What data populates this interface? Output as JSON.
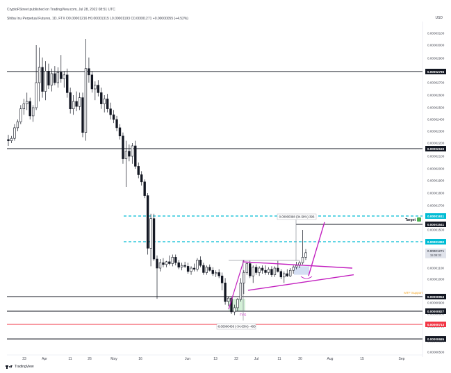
{
  "header": {
    "publisher_line": "CryptoFStreet published on TradingView.com, Jul 28, 2022 08:51 UTC",
    "symbol_line": "Shiba Inu Perpetual Futures, 1D, FTX  O0.00001216  H0.00001315  L0.00001193  C0.00001271  +0.00000055 (+4.52%)"
  },
  "currency": "USD",
  "footer": {
    "brand": "TradingView"
  },
  "colors": {
    "up": "#26a69a",
    "down": "#ef5350",
    "candle": "#131722",
    "level_line": "#131722",
    "cyan_level": "#00bcd4",
    "magenta": "#c21fbf",
    "red_level": "#f23645",
    "target_box": "#131722",
    "price_box": "#131722",
    "current_price_bg": "#e0e3eb",
    "fvg_fill": "#cfeed4",
    "mtf_text": "#f5a623",
    "green_box": "#4caf50"
  },
  "chart_data": {
    "type": "candlestick",
    "title": "Shiba Inu Perpetual Futures, 1D, FTX",
    "x_tick_labels": [
      "23",
      "Apr",
      "11",
      "26",
      "May",
      "16",
      "Jun",
      "13",
      "22",
      "Jul",
      "11",
      "20",
      "Aug",
      "15",
      "Sep"
    ],
    "y_tick_labels": [
      "0.00003100",
      "0.00003000",
      "0.00002900",
      "0.00002700",
      "0.00002600",
      "0.00002500",
      "0.00002400",
      "0.00002300",
      "0.00002200",
      "0.00002100",
      "0.00002000",
      "0.00001900",
      "0.00001800",
      "0.00001700",
      "0.00001600",
      "0.00001500",
      "0.00001100",
      "0.00001000",
      "0.00000900",
      "0.00000800",
      "0.00000700",
      "0.00000600",
      "0.00000500"
    ],
    "ylim": [
      4.8e-06,
      3.18e-05
    ],
    "levels": [
      {
        "label": "0.00002786",
        "price": 2.786e-05,
        "style": "solid",
        "color": "#131722"
      },
      {
        "label": "0.00002160",
        "price": 2.16e-05,
        "style": "solid",
        "color": "#131722"
      },
      {
        "label": "0.00001611",
        "price": 1.611e-05,
        "style": "dashed",
        "color": "#00bcd4"
      },
      {
        "label": "0.00001541",
        "price": 1.541e-05,
        "style": "solid",
        "color": "#131722",
        "tag": "Target"
      },
      {
        "label": "0.00001392",
        "price": 1.392e-05,
        "style": "dashed",
        "color": "#00bcd4"
      },
      {
        "label": "0.00000953",
        "price": 9.53e-06,
        "style": "solid",
        "color": "#131722",
        "tag": "MTF Support"
      },
      {
        "label": "0.00000827",
        "price": 8.27e-06,
        "style": "solid",
        "color": "#131722"
      },
      {
        "label": "0.00000713",
        "price": 7.13e-06,
        "style": "solid",
        "color": "#f23645"
      },
      {
        "label": "0.00000685",
        "price": 6.85e-06,
        "style": "solid",
        "color": "#131722"
      }
    ],
    "current_price": {
      "value": "0.00001271",
      "countdown": "15:08:32"
    },
    "annotations": {
      "measure_top": "0.00000398 (34.58%) 396",
      "measure_bottom": "-0.00000436 (-34.63%) -400",
      "fvg": "FVG",
      "target": "Target",
      "mtf_support": "MTF Support"
    },
    "candles": [
      [
        2.23e-05,
        2.27e-05,
        2.18e-05,
        2.22e-05
      ],
      [
        2.22e-05,
        2.26e-05,
        2.2e-05,
        2.24e-05
      ],
      [
        2.24e-05,
        2.36e-05,
        2.22e-05,
        2.33e-05
      ],
      [
        2.33e-05,
        2.4e-05,
        2.3e-05,
        2.38e-05
      ],
      [
        2.38e-05,
        2.52e-05,
        2.36e-05,
        2.49e-05
      ],
      [
        2.49e-05,
        2.57e-05,
        2.44e-05,
        2.53e-05
      ],
      [
        2.53e-05,
        2.62e-05,
        2.48e-05,
        2.55e-05
      ],
      [
        2.55e-05,
        2.58e-05,
        2.4e-05,
        2.43e-05
      ],
      [
        2.43e-05,
        2.52e-05,
        2.38e-05,
        2.5e-05
      ],
      [
        2.5e-05,
        3e-05,
        2.48e-05,
        2.7e-05
      ],
      [
        2.7e-05,
        2.98e-05,
        2.55e-05,
        2.82e-05
      ],
      [
        2.82e-05,
        2.9e-05,
        2.58e-05,
        2.63e-05
      ],
      [
        2.63e-05,
        2.87e-05,
        2.56e-05,
        2.79e-05
      ],
      [
        2.79e-05,
        2.85e-05,
        2.65e-05,
        2.68e-05
      ],
      [
        2.68e-05,
        2.81e-05,
        2.63e-05,
        2.77e-05
      ],
      [
        2.77e-05,
        2.83e-05,
        2.68e-05,
        2.7e-05
      ],
      [
        2.7e-05,
        2.82e-05,
        2.66e-05,
        2.78e-05
      ],
      [
        2.78e-05,
        2.92e-05,
        2.7e-05,
        2.73e-05
      ],
      [
        2.73e-05,
        2.79e-05,
        2.66e-05,
        2.76e-05
      ],
      [
        2.76e-05,
        2.81e-05,
        2.58e-05,
        2.62e-05
      ],
      [
        2.62e-05,
        2.66e-05,
        2.45e-05,
        2.49e-05
      ],
      [
        2.49e-05,
        2.6e-05,
        2.44e-05,
        2.55e-05
      ],
      [
        2.55e-05,
        2.63e-05,
        2.47e-05,
        2.51e-05
      ],
      [
        2.51e-05,
        2.62e-05,
        2.48e-05,
        2.58e-05
      ],
      [
        2.58e-05,
        2.62e-05,
        2.25e-05,
        2.29e-05
      ],
      [
        2.29e-05,
        3.03e-05,
        2.22e-05,
        2.81e-05
      ],
      [
        2.81e-05,
        2.9e-05,
        2.7e-05,
        2.76e-05
      ],
      [
        2.76e-05,
        2.79e-05,
        2.62e-05,
        2.65e-05
      ],
      [
        2.65e-05,
        2.71e-05,
        2.56e-05,
        2.68e-05
      ],
      [
        2.68e-05,
        2.72e-05,
        2.59e-05,
        2.62e-05
      ],
      [
        2.62e-05,
        2.66e-05,
        2.49e-05,
        2.53e-05
      ],
      [
        2.53e-05,
        2.6e-05,
        2.46e-05,
        2.57e-05
      ],
      [
        2.57e-05,
        2.61e-05,
        2.46e-05,
        2.49e-05
      ],
      [
        2.49e-05,
        2.54e-05,
        2.4e-05,
        2.44e-05
      ],
      [
        2.44e-05,
        2.48e-05,
        2.37e-05,
        2.4e-05
      ],
      [
        2.4e-05,
        2.43e-05,
        2.3e-05,
        2.33e-05
      ],
      [
        2.33e-05,
        2.36e-05,
        2.23e-05,
        2.26e-05
      ],
      [
        2.26e-05,
        2.29e-05,
        2.04e-05,
        2.08e-05
      ],
      [
        2.08e-05,
        2.22e-05,
        1.85e-05,
        2.14e-05
      ],
      [
        2.14e-05,
        2.19e-05,
        2.06e-05,
        2.1e-05
      ],
      [
        2.1e-05,
        2.2e-05,
        2.04e-05,
        2.18e-05
      ],
      [
        2.18e-05,
        2.22e-05,
        2e-05,
        2.02e-05
      ],
      [
        2.02e-05,
        2.05e-05,
        1.92e-05,
        1.95e-05
      ],
      [
        1.95e-05,
        1.98e-05,
        1.86e-05,
        1.89e-05
      ],
      [
        1.89e-05,
        1.91e-05,
        1.76e-05,
        1.78e-05
      ],
      [
        1.78e-05,
        1.8e-05,
        1.25e-05,
        1.32e-05
      ],
      [
        1.32e-05,
        1.63e-05,
        1.12e-05,
        1.59e-05
      ],
      [
        1.59e-05,
        1.63e-05,
        1.18e-05,
        1.2e-05
      ],
      [
        1.2e-05,
        1.24e-05,
        9.2e-06,
        1.1e-05
      ],
      [
        1.1e-05,
        1.2e-05,
        1.07e-05,
        1.16e-05
      ],
      [
        1.16e-05,
        1.21e-05,
        1.11e-05,
        1.14e-05
      ],
      [
        1.14e-05,
        1.18e-05,
        1.11e-05,
        1.17e-05
      ],
      [
        1.17e-05,
        1.24e-05,
        1.13e-05,
        1.15e-05
      ],
      [
        1.15e-05,
        1.25e-05,
        1.12e-05,
        1.22e-05
      ],
      [
        1.22e-05,
        1.25e-05,
        1.13e-05,
        1.16e-05
      ],
      [
        1.16e-05,
        1.19e-05,
        1.09e-05,
        1.11e-05
      ],
      [
        1.11e-05,
        1.16e-05,
        1.08e-05,
        1.13e-05
      ],
      [
        1.13e-05,
        1.17e-05,
        1.1e-05,
        1.12e-05
      ],
      [
        1.12e-05,
        1.16e-05,
        1.05e-05,
        1.07e-05
      ],
      [
        1.07e-05,
        1.12e-05,
        1.04e-05,
        1.1e-05
      ],
      [
        1.1e-05,
        1.15e-05,
        1.07e-05,
        1.09e-05
      ],
      [
        1.09e-05,
        1.21e-05,
        1.07e-05,
        1.19e-05
      ],
      [
        1.19e-05,
        1.23e-05,
        1.11e-05,
        1.13e-05
      ],
      [
        1.13e-05,
        1.16e-05,
        1.04e-05,
        1.06e-05
      ],
      [
        1.06e-05,
        1.13e-05,
        1.04e-05,
        1.11e-05
      ],
      [
        1.11e-05,
        1.14e-05,
        1.07e-05,
        1.08e-05
      ],
      [
        1.08e-05,
        1.11e-05,
        1.03e-05,
        1.05e-05
      ],
      [
        1.05e-05,
        1.08e-05,
        1.02e-05,
        1.06e-05
      ],
      [
        1.06e-05,
        1.09e-05,
        1.01e-05,
        1.03e-05
      ],
      [
        1.03e-05,
        1.06e-05,
        9.7e-06,
        9.9e-06
      ],
      [
        9.9e-06,
        1.01e-05,
        8.7e-06,
        8.9e-06
      ],
      [
        8.9e-06,
        9.5e-06,
        8.6e-06,
        9.3e-06
      ],
      [
        9.3e-06,
        9.4e-06,
        8e-06,
        8.2e-06
      ],
      [
        8.2e-06,
        8.7e-06,
        7.9e-06,
        8.5e-06
      ],
      [
        8.5e-06,
        9.3e-06,
        8.3e-06,
        9.1e-06
      ],
      [
        9.1e-06,
        1.01e-05,
        8.9e-06,
        9.9e-06
      ],
      [
        9.9e-06,
        1.08e-05,
        9.6e-06,
        1.06e-05
      ],
      [
        1.06e-05,
        1.17e-05,
        1.04e-05,
        1.15e-05
      ],
      [
        1.15e-05,
        1.18e-05,
        1.01e-05,
        1.03e-05
      ],
      [
        1.03e-05,
        1.13e-05,
        9.9e-06,
        1.11e-05
      ],
      [
        1.11e-05,
        1.14e-05,
        1.04e-05,
        1.06e-05
      ],
      [
        1.06e-05,
        1.12e-05,
        1.03e-05,
        1.1e-05
      ],
      [
        1.1e-05,
        1.13e-05,
        1.05e-05,
        1.08e-05
      ],
      [
        1.08e-05,
        1.13e-05,
        1.04e-05,
        1.06e-05
      ],
      [
        1.06e-05,
        1.11e-05,
        1.04e-05,
        1.09e-05
      ],
      [
        1.09e-05,
        1.12e-05,
        1.02e-05,
        1.04e-05
      ],
      [
        1.04e-05,
        1.12e-05,
        1.02e-05,
        1.1e-05
      ],
      [
        1.1e-05,
        1.18e-05,
        1.06e-05,
        1.07e-05
      ],
      [
        1.07e-05,
        1.09e-05,
        1e-05,
        1.02e-05
      ],
      [
        1.02e-05,
        1.07e-05,
        9.9e-06,
        1.05e-05
      ],
      [
        1.05e-05,
        1.09e-05,
        1.02e-05,
        1.03e-05
      ],
      [
        1.03e-05,
        1.1e-05,
        1.02e-05,
        1.08e-05
      ],
      [
        1.08e-05,
        1.13e-05,
        1.05e-05,
        1.11e-05
      ],
      [
        1.11e-05,
        1.17e-05,
        1.09e-05,
        1.13e-05
      ],
      [
        1.13e-05,
        1.18e-05,
        1.1e-05,
        1.16e-05
      ],
      [
        1.16e-05,
        1.5e-05,
        1.14e-05,
        1.22e-05
      ],
      [
        1.22e-05,
        1.31e-05,
        1.19e-05,
        1.27e-05
      ]
    ]
  }
}
